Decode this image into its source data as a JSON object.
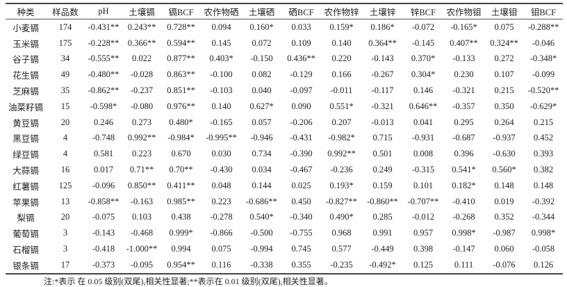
{
  "table": {
    "headers": [
      "种类",
      "样品数",
      "pH",
      "土壤镉",
      "镉BCF",
      "农作物硒",
      "土壤硒",
      "硒BCF",
      "农作物锌",
      "土壤锌",
      "锌BCF",
      "农作物钼",
      "土壤钼",
      "钼BCF"
    ],
    "rows": [
      [
        "小麦镉",
        "174",
        "-0.431**",
        "0.243**",
        "0.728**",
        "0.094",
        "0.160*",
        "0.033",
        "0.159*",
        "0.186*",
        "-0.072",
        "-0.165*",
        "0.075",
        "-0.288**"
      ],
      [
        "玉米镉",
        "175",
        "-0.228**",
        "0.366**",
        "0.594**",
        "0.145",
        "0.072",
        "0.109",
        "0.140",
        "0.364**",
        "-0.145",
        "0.407**",
        "0.324**",
        "-0.046"
      ],
      [
        "谷子镉",
        "34",
        "-0.555**",
        "0.022",
        "0.877**",
        "0.403*",
        "-0.150",
        "0.436**",
        "0.220",
        "-0.143",
        "0.370*",
        "-0.133",
        "0.272",
        "-0.348*"
      ],
      [
        "花生镉",
        "49",
        "-0.480**",
        "-0.028",
        "0.863**",
        "-0.100",
        "0.082",
        "-0.129",
        "0.166",
        "-0.267",
        "0.304*",
        "0.230",
        "0.107",
        "-0.099"
      ],
      [
        "芝麻镉",
        "35",
        "-0.862**",
        "-0.237",
        "0.851**",
        "-0.103",
        "0.040",
        "-0.097",
        "-0.011",
        "-0.117",
        "0.146",
        "-0.321",
        "0.215",
        "-0.520**"
      ],
      [
        "油菜籽镉",
        "15",
        "-0.598*",
        "-0.080",
        "0.976**",
        "0.140",
        "0.627*",
        "0.090",
        "0.551*",
        "-0.321",
        "0.646**",
        "-0.357",
        "0.350",
        "-0.629*"
      ],
      [
        "黄豆镉",
        "20",
        "0.246",
        "0.273",
        "0.480*",
        "-0.165",
        "0.057",
        "-0.206",
        "0.207",
        "-0.013",
        "0.041",
        "0.295",
        "0.264",
        "0.215"
      ],
      [
        "黑豆镉",
        "4",
        "-0.748",
        "0.992**",
        "-0.984*",
        "-0.995**",
        "-0.946",
        "-0.431",
        "-0.982*",
        "0.715",
        "-0.931",
        "-0.687",
        "-0.937",
        "0.452"
      ],
      [
        "绿豆镉",
        "4",
        "0.581",
        "0.223",
        "0.670",
        "0.030",
        "0.734",
        "-0.390",
        "0.992**",
        "0.501",
        "0.008",
        "0.396",
        "-0.630",
        "0.393"
      ],
      [
        "大蒜镉",
        "16",
        "0.017",
        "0.71**",
        "0.70**",
        "-0.430",
        "0.034",
        "-0.467",
        "-0.236",
        "0.249",
        "-0.315",
        "0.541*",
        "0.560*",
        "0.382"
      ],
      [
        "红薯镉",
        "125",
        "-0.096",
        "0.850**",
        "0.411**",
        "0.048",
        "0.144",
        "0.025",
        "0.193*",
        "0.159",
        "0.101",
        "0.182*",
        "0.148",
        "0.148"
      ],
      [
        "苹果镉",
        "13",
        "-0.858**",
        "-0.163",
        "0.985**",
        "0.223",
        "-0.686**",
        "0.450",
        "-0.827**",
        "-0.860**",
        "-0.707**",
        "-0.410",
        "0.019",
        "-0.392"
      ],
      [
        "梨镉",
        "20",
        "-0.075",
        "0.103",
        "0.438",
        "-0.278",
        "0.540*",
        "-0.340",
        "0.490*",
        "0.285",
        "-0.012",
        "-0.268",
        "0.352",
        "-0.344"
      ],
      [
        "葡萄镉",
        "3",
        "-0.143",
        "-0.468",
        "0.999*",
        "-0.866",
        "-0.500",
        "-0.755",
        "0.968",
        "0.991",
        "0.957",
        "0.998*",
        "-0.987",
        "0.998*"
      ],
      [
        "石榴镉",
        "3",
        "-0.418",
        "-1.000**",
        "0.994",
        "0.075",
        "-0.994",
        "0.745",
        "0.577",
        "-0.449",
        "0.398",
        "-0.147",
        "0.060",
        "-0.058"
      ],
      [
        "银条镉",
        "17",
        "-0.373",
        "-0.095",
        "0.954**",
        "0.116",
        "-0.338",
        "0.355",
        "-0.235",
        "-0.492*",
        "0.125",
        "0.111",
        "-0.076",
        "0.126"
      ]
    ]
  },
  "note": "注:*表示 在 0.05 级别(双尾),相关性显著;**表示在 0.01 级别(双尾),相关性显著。"
}
